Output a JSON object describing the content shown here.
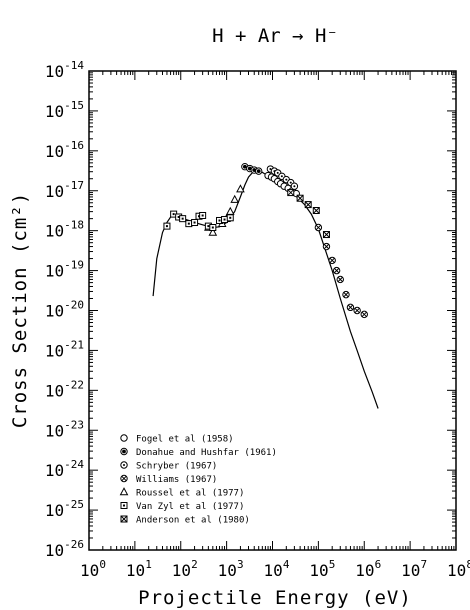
{
  "chart_data": {
    "type": "scatter",
    "title": "H + Ar → H⁻",
    "xlabel": "Projectile Energy (eV)",
    "ylabel": "Cross Section (cm²)",
    "x_scale": "log",
    "y_scale": "log",
    "xlim": [
      1,
      100000000
    ],
    "ylim": [
      1e-26,
      1e-14
    ],
    "x_tick_labels": [
      {
        "base": "10",
        "exp": "0"
      },
      {
        "base": "10",
        "exp": "1"
      },
      {
        "base": "10",
        "exp": "2"
      },
      {
        "base": "10",
        "exp": "3"
      },
      {
        "base": "10",
        "exp": "4"
      },
      {
        "base": "10",
        "exp": "5"
      },
      {
        "base": "10",
        "exp": "6"
      },
      {
        "base": "10",
        "exp": "7"
      },
      {
        "base": "10",
        "exp": "8"
      }
    ],
    "y_tick_labels": [
      {
        "base": "10",
        "exp": "-26"
      },
      {
        "base": "10",
        "exp": "-25"
      },
      {
        "base": "10",
        "exp": "-24"
      },
      {
        "base": "10",
        "exp": "-23"
      },
      {
        "base": "10",
        "exp": "-22"
      },
      {
        "base": "10",
        "exp": "-21"
      },
      {
        "base": "10",
        "exp": "-20"
      },
      {
        "base": "10",
        "exp": "-19"
      },
      {
        "base": "10",
        "exp": "-18"
      },
      {
        "base": "10",
        "exp": "-17"
      },
      {
        "base": "10",
        "exp": "-16"
      },
      {
        "base": "10",
        "exp": "-15"
      },
      {
        "base": "10",
        "exp": "-14"
      }
    ],
    "grid": false,
    "legend_position": "bottom-left",
    "fit_curve": {
      "x": [
        25,
        30,
        40,
        50,
        60,
        70,
        80,
        100,
        150,
        200,
        300,
        500,
        700,
        1000,
        1500,
        2000,
        2500,
        3000,
        4000,
        5000,
        7000,
        10000,
        15000,
        20000,
        30000,
        50000,
        70000,
        100000,
        200000,
        300000,
        500000,
        700000,
        1000000,
        1500000,
        2000000
      ],
      "y": [
        2.3e-20,
        2e-19,
        9e-19,
        1.6e-18,
        2.2e-18,
        2.5e-18,
        2.4e-18,
        2.1e-18,
        1.8e-18,
        1.6e-18,
        1.4e-18,
        1.2e-18,
        1.25e-18,
        1.6e-18,
        3e-18,
        7e-18,
        1.4e-17,
        2.2e-17,
        3.2e-17,
        3.3e-17,
        2.6e-17,
        2e-17,
        1.5e-17,
        1.2e-17,
        8e-18,
        4.5e-18,
        2.6e-18,
        1.1e-18,
        1e-19,
        2e-20,
        3e-21,
        1e-21,
        3e-22,
        9e-23,
        3.5e-23
      ]
    },
    "series": [
      {
        "name": "Fogel et al (1958)",
        "marker": "circle",
        "x": [
          8000,
          9500,
          11000,
          13000,
          15000,
          18000,
          22000,
          27000,
          33000
        ],
        "y": [
          2.4e-17,
          2.2e-17,
          2e-17,
          1.7e-17,
          1.5e-17,
          1.3e-17,
          1.15e-17,
          1e-17,
          8.5e-18
        ]
      },
      {
        "name": "Donahue and Hushfar (1961)",
        "marker": "circle-filled",
        "x": [
          2500,
          3200,
          4000,
          5000
        ],
        "y": [
          4e-17,
          3.6e-17,
          3.3e-17,
          3.1e-17
        ]
      },
      {
        "name": "Schryber (1967)",
        "marker": "circle-dot",
        "x": [
          9000,
          11000,
          13000,
          16000,
          20000,
          25000,
          30000
        ],
        "y": [
          3.5e-17,
          3.1e-17,
          2.8e-17,
          2.3e-17,
          1.9e-17,
          1.6e-17,
          1.3e-17
        ]
      },
      {
        "name": "Williams (1967)",
        "marker": "circle-cross",
        "x": [
          100000,
          150000,
          200000,
          250000,
          300000,
          400000,
          500000,
          700000,
          1000000
        ],
        "y": [
          1.2e-18,
          4e-19,
          1.8e-19,
          1e-19,
          6e-20,
          2.5e-20,
          1.2e-20,
          1e-20,
          8e-21
        ]
      },
      {
        "name": "Roussel et al (1977)",
        "marker": "triangle",
        "x": [
          400,
          500,
          800,
          1000,
          1200,
          1500,
          2000
        ],
        "y": [
          1.2e-18,
          9e-19,
          1.5e-18,
          2e-18,
          3e-18,
          6e-18,
          1.1e-17
        ]
      },
      {
        "name": "Van Zyl et al (1977)",
        "marker": "square",
        "x": [
          50,
          70,
          90,
          110,
          150,
          200,
          250,
          300,
          400,
          500,
          700,
          900,
          1200
        ],
        "y": [
          1.3e-18,
          2.6e-18,
          2.2e-18,
          2e-18,
          1.5e-18,
          1.6e-18,
          2.3e-18,
          2.4e-18,
          1.3e-18,
          1.2e-18,
          1.8e-18,
          1.9e-18,
          2.1e-18
        ]
      },
      {
        "name": "Anderson et al (1980)",
        "marker": "square-cross",
        "x": [
          25000,
          40000,
          60000,
          90000,
          150000
        ],
        "y": [
          9e-18,
          6.5e-18,
          4.5e-18,
          3.2e-18,
          8e-19
        ]
      }
    ]
  }
}
